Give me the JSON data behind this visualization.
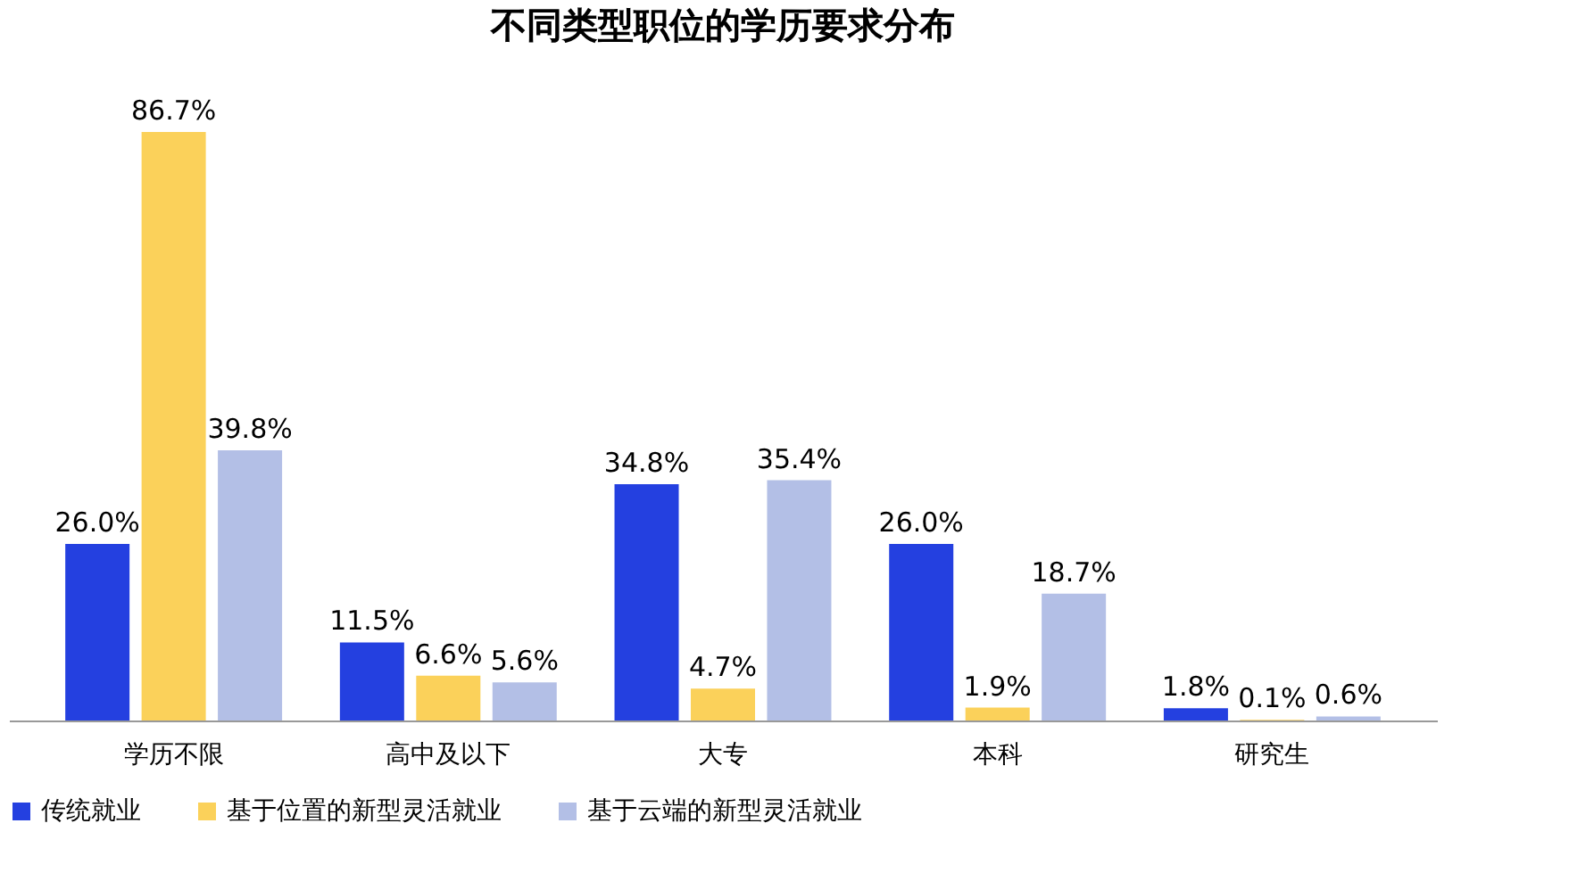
{
  "chart_data": {
    "type": "bar",
    "title": "不同类型职位的学历要求分布",
    "categories": [
      "学历不限",
      "高中及以下",
      "大专",
      "本科",
      "研究生"
    ],
    "legend": "bottom",
    "grid": false,
    "series": [
      {
        "name": "传统就业",
        "color": "#2440e0",
        "values": [
          26.0,
          11.5,
          34.8,
          26.0,
          1.8
        ],
        "value_labels": [
          "26.0%",
          "11.5%",
          "34.8%",
          "26.0%",
          "1.8%"
        ]
      },
      {
        "name": "基于位置的新型灵活就业",
        "color": "#fbd15a",
        "values": [
          86.7,
          6.6,
          4.7,
          1.9,
          0.1
        ],
        "value_labels": [
          "86.7%",
          "6.6%",
          "4.7%",
          "1.9%",
          "0.1%"
        ]
      },
      {
        "name": "基于云端的新型灵活就业",
        "color": "#b3bfe6",
        "values": [
          39.8,
          5.6,
          35.4,
          18.7,
          0.6
        ],
        "value_labels": [
          "39.8%",
          "5.6%",
          "35.4%",
          "18.7%",
          "0.6%"
        ]
      }
    ]
  }
}
